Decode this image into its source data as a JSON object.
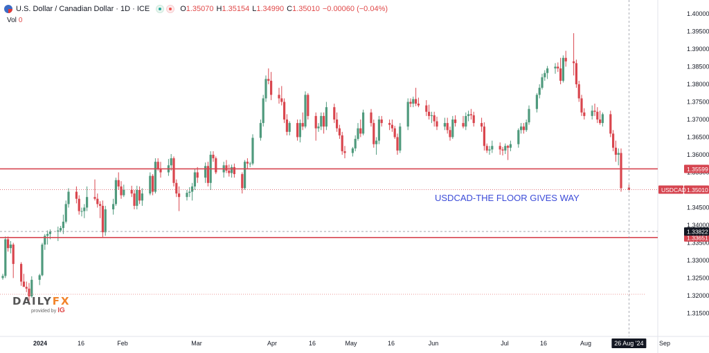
{
  "header": {
    "symbol": "U.S. Dollar / Canadian Dollar · 1D · ICE",
    "open_label": "O",
    "open": "1.35070",
    "high_label": "H",
    "high": "1.35154",
    "low_label": "L",
    "low": "1.34990",
    "close_label": "C",
    "close": "1.35010",
    "change": "−0.00060 (−0.04%)",
    "volume_label": "Vol",
    "volume": "0"
  },
  "annotation": "USDCAD-THE FLOOR GIVES WAY",
  "price_tags": {
    "symbol_tag": "USDCAD",
    "last": "1.35010",
    "resistance": "1.35599",
    "crosshair": "1.33822",
    "support": "1.33651"
  },
  "crosshair_date": "26 Aug '24",
  "logo": {
    "brand_a": "DAILY",
    "brand_b": "FX",
    "provided": "provided by",
    "ig": "IG"
  },
  "colors": {
    "up": "#4f9a7d",
    "down": "#d9464e",
    "level_line": "#d64550",
    "annotation": "#3b4bd8"
  },
  "chart_data": {
    "type": "candlestick",
    "title": "U.S. Dollar / Canadian Dollar · 1D · ICE",
    "y_ticks": [
      "1.40000",
      "1.39500",
      "1.39000",
      "1.38500",
      "1.38000",
      "1.37500",
      "1.37000",
      "1.36500",
      "1.36000",
      "1.35500",
      "1.35000",
      "1.34500",
      "1.34000",
      "1.33500",
      "1.33000",
      "1.32500",
      "1.32000",
      "1.31500"
    ],
    "x_ticks": [
      "2024",
      "16",
      "Feb",
      "Mar",
      "Apr",
      "16",
      "May",
      "16",
      "Jun",
      "Jul",
      "16",
      "Aug",
      "16",
      "Sep"
    ],
    "ylim": [
      1.3125,
      1.4025
    ],
    "horizontal_levels": [
      1.35599,
      1.33651
    ],
    "last_price": 1.3501,
    "candles": [
      [
        "2024-01-01",
        1.325,
        1.3262,
        1.3245,
        1.3256
      ],
      [
        "2024-01-02",
        1.3256,
        1.3368,
        1.325,
        1.336
      ],
      [
        "2024-01-03",
        1.336,
        1.3368,
        1.3325,
        1.3335
      ],
      [
        "2024-01-04",
        1.3335,
        1.3355,
        1.332,
        1.3345
      ],
      [
        "2024-01-05",
        1.3345,
        1.335,
        1.325,
        1.329
      ],
      [
        "2024-01-08",
        1.329,
        1.3295,
        1.3228,
        1.324
      ],
      [
        "2024-01-09",
        1.324,
        1.3262,
        1.3225,
        1.3225
      ],
      [
        "2024-01-10",
        1.3225,
        1.324,
        1.321,
        1.322
      ],
      [
        "2024-01-11",
        1.322,
        1.3236,
        1.3186,
        1.3198
      ],
      [
        "2024-01-12",
        1.3198,
        1.3255,
        1.3194,
        1.3245
      ],
      [
        "2024-01-15",
        1.3245,
        1.3262,
        1.323,
        1.3258
      ],
      [
        "2024-01-16",
        1.3258,
        1.335,
        1.3255,
        1.3345
      ],
      [
        "2024-01-17",
        1.3345,
        1.3375,
        1.333,
        1.337
      ],
      [
        "2024-01-18",
        1.337,
        1.3385,
        1.3345,
        1.3375
      ],
      [
        "2024-01-19",
        1.3375,
        1.3388,
        1.336,
        1.3382
      ],
      [
        "2024-01-22",
        1.3382,
        1.3396,
        1.3355,
        1.3385
      ],
      [
        "2024-01-23",
        1.3385,
        1.3398,
        1.338,
        1.3392
      ],
      [
        "2024-01-24",
        1.3392,
        1.343,
        1.3375,
        1.341
      ],
      [
        "2024-01-25",
        1.341,
        1.347,
        1.3405,
        1.346
      ],
      [
        "2024-01-26",
        1.346,
        1.3505,
        1.345,
        1.3495
      ],
      [
        "2024-01-29",
        1.3495,
        1.351,
        1.3462,
        1.3475
      ],
      [
        "2024-01-30",
        1.3475,
        1.3485,
        1.343,
        1.344
      ],
      [
        "2024-01-31",
        1.344,
        1.345,
        1.3425,
        1.344
      ],
      [
        "2024-02-01",
        1.344,
        1.346,
        1.342,
        1.345
      ],
      [
        "2024-02-02",
        1.345,
        1.351,
        1.344,
        1.348
      ],
      [
        "2024-02-05",
        1.348,
        1.353,
        1.347,
        1.3475
      ],
      [
        "2024-02-06",
        1.3475,
        1.349,
        1.345,
        1.346
      ],
      [
        "2024-02-07",
        1.346,
        1.3468,
        1.342,
        1.3455
      ],
      [
        "2024-02-08",
        1.3455,
        1.347,
        1.3365,
        1.338
      ],
      [
        "2024-02-09",
        1.338,
        1.3455,
        1.337,
        1.3445
      ],
      [
        "2024-02-12",
        1.3445,
        1.3475,
        1.343,
        1.346
      ],
      [
        "2024-02-13",
        1.346,
        1.3535,
        1.3455,
        1.3528
      ],
      [
        "2024-02-14",
        1.3528,
        1.355,
        1.35,
        1.351
      ],
      [
        "2024-02-15",
        1.351,
        1.3525,
        1.3475,
        1.3485
      ],
      [
        "2024-02-16",
        1.3485,
        1.3515,
        1.348,
        1.35
      ],
      [
        "2024-02-19",
        1.35,
        1.3512,
        1.348,
        1.349
      ],
      [
        "2024-02-20",
        1.349,
        1.35,
        1.3445,
        1.3455
      ],
      [
        "2024-02-21",
        1.3455,
        1.3512,
        1.3445,
        1.35
      ],
      [
        "2024-02-22",
        1.35,
        1.351,
        1.346,
        1.347
      ],
      [
        "2024-02-23",
        1.347,
        1.3505,
        1.3455,
        1.349
      ],
      [
        "2024-02-26",
        1.349,
        1.355,
        1.3485,
        1.354
      ],
      [
        "2024-02-27",
        1.354,
        1.3545,
        1.3485,
        1.3495
      ],
      [
        "2024-02-28",
        1.3495,
        1.359,
        1.349,
        1.358
      ],
      [
        "2024-02-29",
        1.358,
        1.359,
        1.3555,
        1.356
      ],
      [
        "2024-03-01",
        1.356,
        1.358,
        1.3535,
        1.355
      ],
      [
        "2024-03-04",
        1.355,
        1.3588,
        1.354,
        1.357
      ],
      [
        "2024-03-05",
        1.357,
        1.3602,
        1.3555,
        1.359
      ],
      [
        "2024-03-06",
        1.359,
        1.3595,
        1.351,
        1.352
      ],
      [
        "2024-03-07",
        1.352,
        1.353,
        1.348,
        1.349
      ],
      [
        "2024-03-08",
        1.349,
        1.351,
        1.344,
        1.348
      ],
      [
        "2024-03-11",
        1.348,
        1.35,
        1.347,
        1.3492
      ],
      [
        "2024-03-12",
        1.3492,
        1.3508,
        1.348,
        1.3495
      ],
      [
        "2024-03-13",
        1.3495,
        1.352,
        1.347,
        1.351
      ],
      [
        "2024-03-14",
        1.351,
        1.356,
        1.35,
        1.355
      ],
      [
        "2024-03-15",
        1.355,
        1.3565,
        1.352,
        1.3535
      ],
      [
        "2024-03-18",
        1.3535,
        1.3578,
        1.352,
        1.3568
      ],
      [
        "2024-03-19",
        1.3568,
        1.358,
        1.351,
        1.352
      ],
      [
        "2024-03-20",
        1.352,
        1.361,
        1.35,
        1.36
      ],
      [
        "2024-03-21",
        1.36,
        1.361,
        1.358,
        1.359
      ],
      [
        "2024-03-22",
        1.359,
        1.3595,
        1.3545,
        1.355
      ],
      [
        "2024-03-25",
        1.355,
        1.358,
        1.3535,
        1.357
      ],
      [
        "2024-03-26",
        1.357,
        1.3585,
        1.3548,
        1.3555
      ],
      [
        "2024-03-27",
        1.3555,
        1.3572,
        1.3538,
        1.3548
      ],
      [
        "2024-03-28",
        1.3548,
        1.3572,
        1.3535,
        1.3565
      ],
      [
        "2024-03-29",
        1.3565,
        1.3575,
        1.3535,
        1.3545
      ],
      [
        "2024-04-01",
        1.3545,
        1.355,
        1.349,
        1.3505
      ],
      [
        "2024-04-02",
        1.3505,
        1.3585,
        1.35,
        1.358
      ],
      [
        "2024-04-03",
        1.358,
        1.359,
        1.356,
        1.3575
      ],
      [
        "2024-04-04",
        1.3575,
        1.358,
        1.3565,
        1.3575
      ],
      [
        "2024-04-05",
        1.3575,
        1.3658,
        1.357,
        1.3648
      ],
      [
        "2024-04-08",
        1.3648,
        1.37,
        1.364,
        1.369
      ],
      [
        "2024-04-09",
        1.369,
        1.377,
        1.368,
        1.376
      ],
      [
        "2024-04-10",
        1.376,
        1.3825,
        1.375,
        1.3815
      ],
      [
        "2024-04-11",
        1.3815,
        1.3845,
        1.38,
        1.381
      ],
      [
        "2024-04-12",
        1.381,
        1.3835,
        1.3755,
        1.377
      ],
      [
        "2024-04-15",
        1.377,
        1.379,
        1.3745,
        1.376
      ],
      [
        "2024-04-16",
        1.376,
        1.3795,
        1.374,
        1.375
      ],
      [
        "2024-04-17",
        1.375,
        1.376,
        1.369,
        1.37
      ],
      [
        "2024-04-18",
        1.37,
        1.3715,
        1.3655,
        1.3665
      ],
      [
        "2024-04-19",
        1.3665,
        1.3695,
        1.3655,
        1.369
      ],
      [
        "2024-04-22",
        1.369,
        1.37,
        1.364,
        1.365
      ],
      [
        "2024-04-23",
        1.365,
        1.37,
        1.3635,
        1.369
      ],
      [
        "2024-04-24",
        1.369,
        1.372,
        1.367,
        1.368
      ],
      [
        "2024-04-25",
        1.368,
        1.378,
        1.3675,
        1.377
      ],
      [
        "2024-04-26",
        1.377,
        1.3775,
        1.37,
        1.371
      ],
      [
        "2024-04-29",
        1.371,
        1.372,
        1.364,
        1.3675
      ],
      [
        "2024-04-30",
        1.3675,
        1.369,
        1.3665,
        1.368
      ],
      [
        "2024-05-01",
        1.368,
        1.372,
        1.367,
        1.371
      ],
      [
        "2024-05-02",
        1.371,
        1.372,
        1.366,
        1.368
      ],
      [
        "2024-05-03",
        1.368,
        1.375,
        1.367,
        1.3735
      ],
      [
        "2024-05-06",
        1.3735,
        1.3745,
        1.369,
        1.37
      ],
      [
        "2024-05-07",
        1.37,
        1.372,
        1.3665,
        1.3675
      ],
      [
        "2024-05-08",
        1.3675,
        1.3685,
        1.3645,
        1.3655
      ],
      [
        "2024-05-09",
        1.3655,
        1.3665,
        1.36,
        1.361
      ],
      [
        "2024-05-10",
        1.361,
        1.3625,
        1.359,
        1.3605
      ],
      [
        "2024-05-13",
        1.3605,
        1.3622,
        1.3595,
        1.3618
      ],
      [
        "2024-05-14",
        1.3618,
        1.3655,
        1.361,
        1.3645
      ],
      [
        "2024-05-15",
        1.3645,
        1.369,
        1.364,
        1.3675
      ],
      [
        "2024-05-16",
        1.3675,
        1.37,
        1.365,
        1.366
      ],
      [
        "2024-05-17",
        1.366,
        1.3728,
        1.3655,
        1.372
      ],
      [
        "2024-05-20",
        1.372,
        1.373,
        1.368,
        1.369
      ],
      [
        "2024-05-21",
        1.369,
        1.37,
        1.362,
        1.363
      ],
      [
        "2024-05-22",
        1.363,
        1.365,
        1.36,
        1.364
      ],
      [
        "2024-05-23",
        1.364,
        1.371,
        1.363,
        1.37
      ],
      [
        "2024-05-24",
        1.37,
        1.371,
        1.368,
        1.369
      ],
      [
        "2024-05-27",
        1.369,
        1.37,
        1.367,
        1.3685
      ],
      [
        "2024-05-28",
        1.3685,
        1.37,
        1.3665,
        1.3675
      ],
      [
        "2024-05-29",
        1.3675,
        1.3682,
        1.3645,
        1.365
      ],
      [
        "2024-05-30",
        1.365,
        1.366,
        1.36,
        1.3612
      ],
      [
        "2024-05-31",
        1.3612,
        1.369,
        1.3605,
        1.368
      ],
      [
        "2024-06-03",
        1.368,
        1.376,
        1.367,
        1.375
      ],
      [
        "2024-06-04",
        1.375,
        1.376,
        1.3735,
        1.3745
      ],
      [
        "2024-06-05",
        1.3745,
        1.3765,
        1.3735,
        1.3758
      ],
      [
        "2024-06-06",
        1.3758,
        1.379,
        1.3738,
        1.3745
      ],
      [
        "2024-06-07",
        1.3745,
        1.3762,
        1.3735,
        1.374
      ],
      [
        "2024-06-10",
        1.374,
        1.3755,
        1.371,
        1.3722
      ],
      [
        "2024-06-11",
        1.3722,
        1.3742,
        1.37,
        1.371
      ],
      [
        "2024-06-12",
        1.371,
        1.3722,
        1.369,
        1.3712
      ],
      [
        "2024-06-13",
        1.3712,
        1.3722,
        1.368,
        1.3695
      ],
      [
        "2024-06-14",
        1.3695,
        1.3708,
        1.367,
        1.368
      ],
      [
        "2024-06-17",
        1.368,
        1.3705,
        1.367,
        1.369
      ],
      [
        "2024-06-18",
        1.369,
        1.3705,
        1.366,
        1.367
      ],
      [
        "2024-06-19",
        1.367,
        1.368,
        1.364,
        1.365
      ],
      [
        "2024-06-20",
        1.365,
        1.371,
        1.3645,
        1.37
      ],
      [
        "2024-06-21",
        1.37,
        1.3712,
        1.368,
        1.369
      ],
      [
        "2024-06-24",
        1.369,
        1.371,
        1.3675,
        1.368
      ],
      [
        "2024-06-25",
        1.368,
        1.372,
        1.367,
        1.371
      ],
      [
        "2024-06-26",
        1.371,
        1.3725,
        1.3695,
        1.3715
      ],
      [
        "2024-06-27",
        1.3715,
        1.373,
        1.37,
        1.3712
      ],
      [
        "2024-06-28",
        1.3712,
        1.3722,
        1.368,
        1.369
      ],
      [
        "2024-07-01",
        1.369,
        1.3705,
        1.3665,
        1.368
      ],
      [
        "2024-07-02",
        1.368,
        1.3692,
        1.3612,
        1.3625
      ],
      [
        "2024-07-03",
        1.3625,
        1.3632,
        1.3605,
        1.3612
      ],
      [
        "2024-07-04",
        1.3612,
        1.3625,
        1.36,
        1.3615
      ],
      [
        "2024-07-05",
        1.3615,
        1.364,
        1.3605,
        1.3625
      ],
      [
        "2024-07-08",
        1.3625,
        1.3635,
        1.36,
        1.3615
      ],
      [
        "2024-07-09",
        1.3615,
        1.3622,
        1.3598,
        1.3612
      ],
      [
        "2024-07-10",
        1.3612,
        1.3632,
        1.3602,
        1.3625
      ],
      [
        "2024-07-11",
        1.3625,
        1.3628,
        1.3585,
        1.362
      ],
      [
        "2024-07-12",
        1.362,
        1.364,
        1.361,
        1.363
      ],
      [
        "2024-07-15",
        1.363,
        1.3675,
        1.362,
        1.367
      ],
      [
        "2024-07-16",
        1.367,
        1.369,
        1.366,
        1.368
      ],
      [
        "2024-07-17",
        1.368,
        1.369,
        1.366,
        1.367
      ],
      [
        "2024-07-18",
        1.367,
        1.37,
        1.3665,
        1.3692
      ],
      [
        "2024-07-19",
        1.3692,
        1.374,
        1.3685,
        1.373
      ],
      [
        "2024-07-22",
        1.373,
        1.3775,
        1.372,
        1.377
      ],
      [
        "2024-07-23",
        1.377,
        1.38,
        1.376,
        1.379
      ],
      [
        "2024-07-24",
        1.379,
        1.383,
        1.3785,
        1.382
      ],
      [
        "2024-07-25",
        1.382,
        1.384,
        1.381,
        1.3832
      ],
      [
        "2024-07-26",
        1.3832,
        1.3852,
        1.3815,
        1.3845
      ],
      [
        "2024-07-29",
        1.3845,
        1.386,
        1.383,
        1.385
      ],
      [
        "2024-07-30",
        1.385,
        1.3862,
        1.3835,
        1.3845
      ],
      [
        "2024-07-31",
        1.3845,
        1.3875,
        1.38,
        1.381
      ],
      [
        "2024-08-01",
        1.381,
        1.3882,
        1.3805,
        1.3875
      ],
      [
        "2024-08-02",
        1.3875,
        1.3895,
        1.385,
        1.3865
      ],
      [
        "2024-08-05",
        1.3865,
        1.3945,
        1.3825,
        1.386
      ],
      [
        "2024-08-06",
        1.386,
        1.387,
        1.379,
        1.38
      ],
      [
        "2024-08-07",
        1.38,
        1.381,
        1.375,
        1.376
      ],
      [
        "2024-08-08",
        1.376,
        1.377,
        1.371,
        1.372
      ],
      [
        "2024-08-09",
        1.372,
        1.3732,
        1.37,
        1.371
      ],
      [
        "2024-08-12",
        1.371,
        1.374,
        1.37,
        1.3725
      ],
      [
        "2024-08-13",
        1.3725,
        1.3745,
        1.371,
        1.3722
      ],
      [
        "2024-08-14",
        1.3722,
        1.3735,
        1.369,
        1.37
      ],
      [
        "2024-08-15",
        1.37,
        1.3725,
        1.3685,
        1.369
      ],
      [
        "2024-08-16",
        1.369,
        1.372,
        1.368,
        1.3715
      ],
      [
        "2024-08-19",
        1.3715,
        1.3725,
        1.365,
        1.366
      ],
      [
        "2024-08-20",
        1.366,
        1.367,
        1.361,
        1.362
      ],
      [
        "2024-08-21",
        1.362,
        1.364,
        1.358,
        1.36
      ],
      [
        "2024-08-22",
        1.36,
        1.3618,
        1.357,
        1.3605
      ],
      [
        "2024-08-23",
        1.3605,
        1.3618,
        1.3495,
        1.3505
      ],
      [
        "2024-08-26",
        1.3507,
        1.35154,
        1.3499,
        1.3501
      ]
    ]
  }
}
